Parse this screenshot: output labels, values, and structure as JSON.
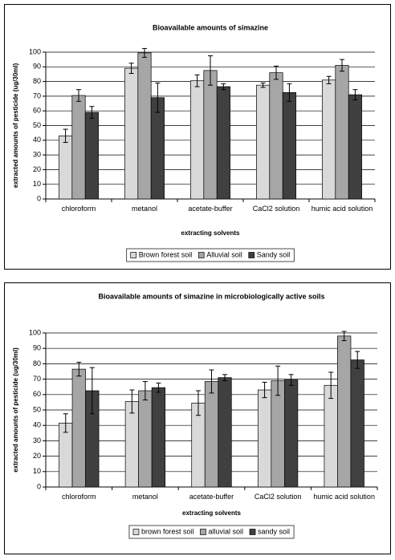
{
  "chart_data": [
    {
      "type": "bar",
      "title": "Bioavailable amounts of simazine",
      "x_label": "extracting solvents",
      "y_label": "extracted amounts of pesticide (ug/30ml)",
      "categories": [
        "chloroform",
        "metanol",
        "acetate-buffer",
        "CaCl2 solution",
        "humic acid solution"
      ],
      "series": [
        {
          "name": "Brown forest soil",
          "color": "#d9d9d9",
          "values": [
            43,
            89,
            80.5,
            77.5,
            81
          ],
          "errors": [
            4.5,
            3.5,
            4,
            1.5,
            2.5
          ]
        },
        {
          "name": "Alluvial soil",
          "color": "#a6a6a6",
          "values": [
            70.5,
            99.5,
            87.5,
            86,
            91
          ],
          "errors": [
            4,
            3,
            10,
            4.5,
            4
          ]
        },
        {
          "name": "Sandy soil",
          "color": "#404040",
          "values": [
            59,
            69,
            76.5,
            72.5,
            71
          ],
          "errors": [
            4,
            10,
            2,
            6,
            3.5
          ]
        }
      ],
      "ylim": [
        0,
        100
      ],
      "yticks": [
        0,
        10,
        20,
        30,
        40,
        50,
        60,
        70,
        80,
        90,
        100
      ],
      "grid": true,
      "legend": "bottom"
    },
    {
      "type": "bar",
      "title": "Bioavailable amounts of simazine in microbiologically active soils",
      "x_label": "extracting solvents",
      "y_label": "extracted amounts of pesticide (ug/30ml)",
      "categories": [
        "chloroform",
        "metanol",
        "acetate-buffer",
        "CaCl2 solution",
        "humic acid solution"
      ],
      "series": [
        {
          "name": "brown forest soil",
          "color": "#d9d9d9",
          "values": [
            41.5,
            55.5,
            54.5,
            63,
            66
          ],
          "errors": [
            6,
            7.5,
            8,
            5,
            8.5
          ]
        },
        {
          "name": "alluvial soil",
          "color": "#a6a6a6",
          "values": [
            76.5,
            62.5,
            68.5,
            69,
            98
          ],
          "errors": [
            4.5,
            6,
            7.5,
            9.5,
            3
          ]
        },
        {
          "name": "sandy soil",
          "color": "#404040",
          "values": [
            62.5,
            64.5,
            71,
            69.5,
            82.5
          ],
          "errors": [
            15,
            3,
            2,
            3.5,
            5.5
          ]
        }
      ],
      "ylim": [
        0,
        100
      ],
      "yticks": [
        0,
        10,
        20,
        30,
        40,
        50,
        60,
        70,
        80,
        90,
        100
      ],
      "grid": true,
      "legend": "bottom"
    }
  ]
}
